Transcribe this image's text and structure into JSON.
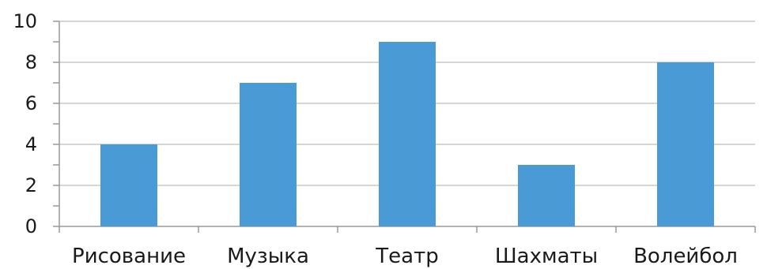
{
  "chart_data": {
    "type": "bar",
    "categories": [
      "Рисование",
      "Музыка",
      "Театр",
      "Шахматы",
      "Волейбол"
    ],
    "values": [
      4,
      7,
      9,
      3,
      8
    ],
    "title": "",
    "xlabel": "",
    "ylabel": "",
    "ylim": [
      0,
      10
    ],
    "yticks": [
      0,
      2,
      4,
      6,
      8,
      10
    ],
    "grid": true,
    "legend": "none",
    "colors": {
      "bar": "#4a9ad6",
      "grid": "#c8c8c8",
      "axis": "#999999"
    }
  }
}
